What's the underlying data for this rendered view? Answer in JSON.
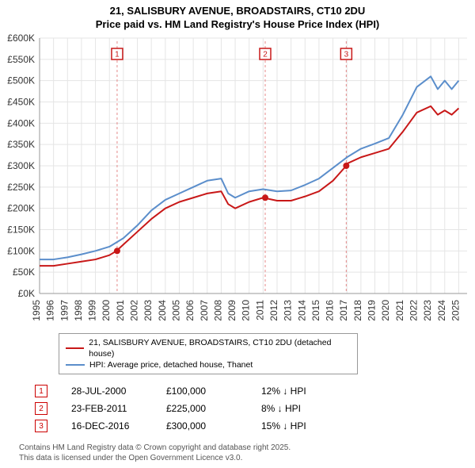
{
  "title_line1": "21, SALISBURY AVENUE, BROADSTAIRS, CT10 2DU",
  "title_line2": "Price paid vs. HM Land Registry's House Price Index (HPI)",
  "chart": {
    "type": "line",
    "background_color": "#ffffff",
    "grid_color": "#e5e5e5",
    "axis_color": "#999999",
    "x_years": [
      1995,
      1996,
      1997,
      1998,
      1999,
      2000,
      2001,
      2002,
      2003,
      2004,
      2005,
      2006,
      2007,
      2008,
      2009,
      2010,
      2011,
      2012,
      2013,
      2014,
      2015,
      2016,
      2017,
      2018,
      2019,
      2020,
      2021,
      2022,
      2023,
      2024,
      2025
    ],
    "xlim": [
      1995,
      2025.6
    ],
    "ylim": [
      0,
      600
    ],
    "ytick_step": 50,
    "y_prefix": "£",
    "y_suffix": "K",
    "axis_label_fontsize": 12,
    "line_width": 2,
    "series": [
      {
        "name": "21, SALISBURY AVENUE, BROADSTAIRS, CT10 2DU (detached house)",
        "color": "#c81818",
        "data": [
          [
            1995,
            65
          ],
          [
            1996,
            65
          ],
          [
            1997,
            70
          ],
          [
            1998,
            75
          ],
          [
            1999,
            80
          ],
          [
            2000,
            90
          ],
          [
            2000.5,
            100
          ],
          [
            2001,
            115
          ],
          [
            2002,
            145
          ],
          [
            2003,
            175
          ],
          [
            2004,
            200
          ],
          [
            2005,
            215
          ],
          [
            2006,
            225
          ],
          [
            2007,
            235
          ],
          [
            2008,
            240
          ],
          [
            2008.5,
            210
          ],
          [
            2009,
            200
          ],
          [
            2010,
            215
          ],
          [
            2011,
            225
          ],
          [
            2012,
            218
          ],
          [
            2013,
            218
          ],
          [
            2014,
            228
          ],
          [
            2015,
            240
          ],
          [
            2016,
            265
          ],
          [
            2016.95,
            300
          ],
          [
            2017,
            305
          ],
          [
            2018,
            320
          ],
          [
            2019,
            330
          ],
          [
            2020,
            340
          ],
          [
            2021,
            380
          ],
          [
            2022,
            425
          ],
          [
            2023,
            440
          ],
          [
            2023.5,
            420
          ],
          [
            2024,
            430
          ],
          [
            2024.5,
            420
          ],
          [
            2025,
            435
          ]
        ]
      },
      {
        "name": "HPI: Average price, detached house, Thanet",
        "color": "#5b8ecb",
        "data": [
          [
            1995,
            80
          ],
          [
            1996,
            80
          ],
          [
            1997,
            85
          ],
          [
            1998,
            92
          ],
          [
            1999,
            100
          ],
          [
            2000,
            110
          ],
          [
            2001,
            130
          ],
          [
            2002,
            160
          ],
          [
            2003,
            195
          ],
          [
            2004,
            220
          ],
          [
            2005,
            235
          ],
          [
            2006,
            250
          ],
          [
            2007,
            265
          ],
          [
            2008,
            270
          ],
          [
            2008.5,
            235
          ],
          [
            2009,
            225
          ],
          [
            2010,
            240
          ],
          [
            2011,
            245
          ],
          [
            2012,
            240
          ],
          [
            2013,
            242
          ],
          [
            2014,
            255
          ],
          [
            2015,
            270
          ],
          [
            2016,
            295
          ],
          [
            2017,
            320
          ],
          [
            2018,
            340
          ],
          [
            2019,
            352
          ],
          [
            2020,
            365
          ],
          [
            2021,
            420
          ],
          [
            2022,
            485
          ],
          [
            2023,
            510
          ],
          [
            2023.5,
            480
          ],
          [
            2024,
            500
          ],
          [
            2024.5,
            480
          ],
          [
            2025,
            500
          ]
        ]
      }
    ],
    "sale_markers": [
      {
        "n": "1",
        "x": 2000.55,
        "y": 100
      },
      {
        "n": "2",
        "x": 2011.15,
        "y": 225
      },
      {
        "n": "3",
        "x": 2016.95,
        "y": 300
      }
    ],
    "top_marker_y": 20,
    "vline_color": "#e48a8a",
    "vline_dash": "3,3",
    "marker_box_color": "#c81818",
    "marker_box_size": 14,
    "marker_fontsize": 10,
    "marker_dot_color": "#c81818",
    "marker_dot_radius": 4
  },
  "legend": {
    "a": "21, SALISBURY AVENUE, BROADSTAIRS, CT10 2DU (detached house)",
    "b": "HPI: Average price, detached house, Thanet",
    "a_color": "#c81818",
    "b_color": "#5b8ecb"
  },
  "sales": [
    {
      "n": "1",
      "date": "28-JUL-2000",
      "price": "£100,000",
      "diff": "12% ↓ HPI"
    },
    {
      "n": "2",
      "date": "23-FEB-2011",
      "price": "£225,000",
      "diff": "8% ↓ HPI"
    },
    {
      "n": "3",
      "date": "16-DEC-2016",
      "price": "£300,000",
      "diff": "15% ↓ HPI"
    }
  ],
  "footer_line1": "Contains HM Land Registry data © Crown copyright and database right 2025.",
  "footer_line2": "This data is licensed under the Open Government Licence v3.0."
}
